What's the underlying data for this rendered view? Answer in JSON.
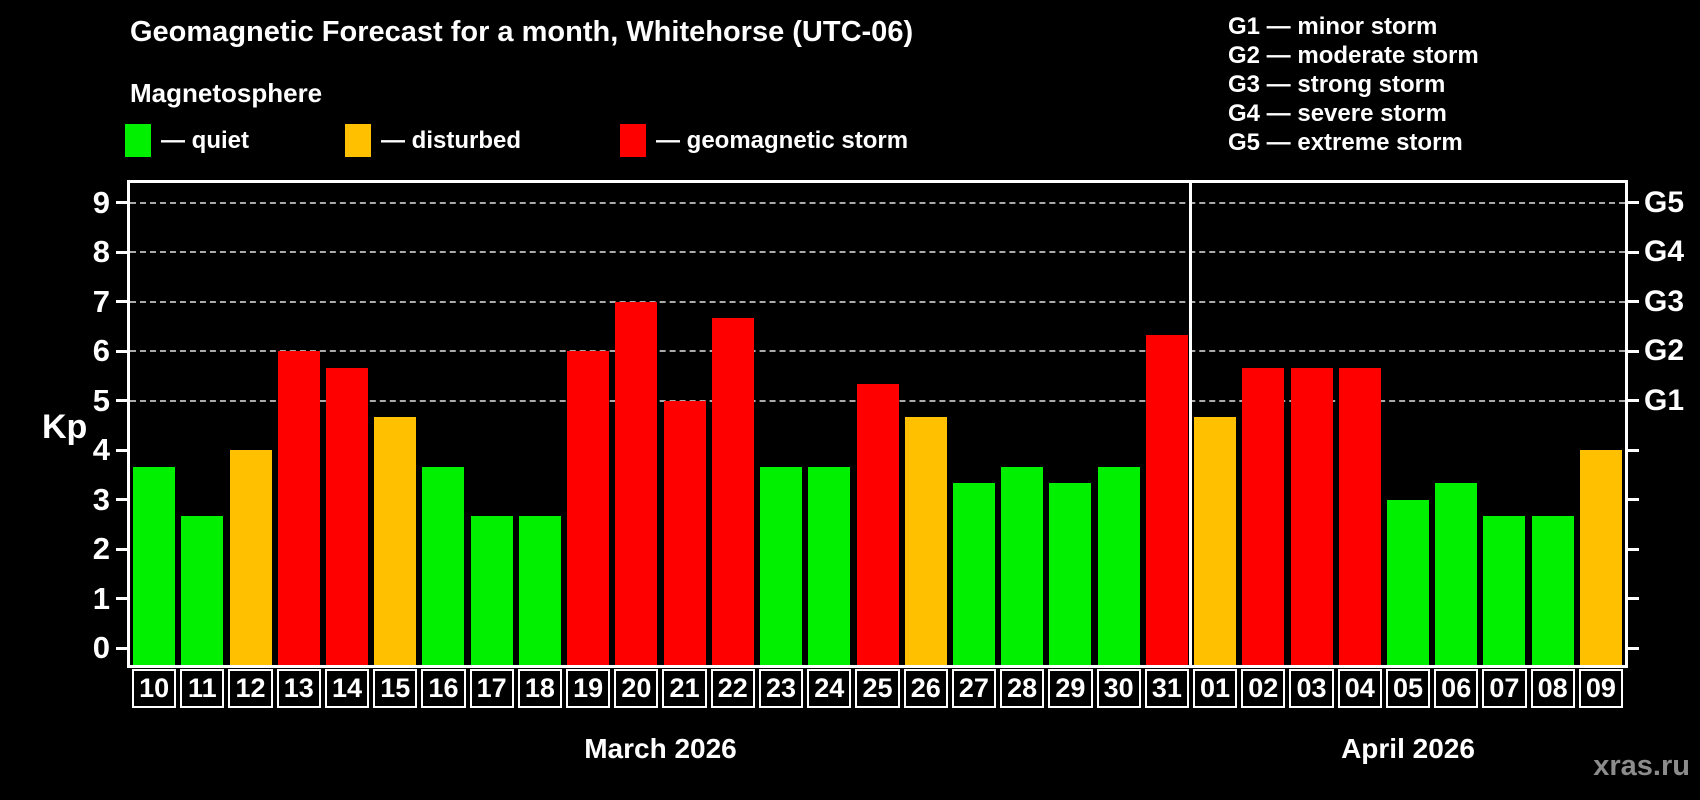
{
  "title": "Geomagnetic Forecast for a month, Whitehorse (UTC-06)",
  "subtitle": "Magnetosphere",
  "magnetosphere_legend": [
    {
      "status": "quiet",
      "label": "— quiet"
    },
    {
      "status": "disturbed",
      "label": "— disturbed"
    },
    {
      "status": "storm",
      "label": "— geomagnetic storm"
    }
  ],
  "g_scale_legend": [
    "G1 — minor storm",
    "G2 — moderate storm",
    "G3 — strong storm",
    "G4 — severe storm",
    "G5 — extreme storm"
  ],
  "watermark": "xras.ru",
  "chart_data": {
    "type": "bar",
    "title": "Geomagnetic Forecast for a month, Whitehorse (UTC-06)",
    "ylabel": "Kp",
    "xlabel": "",
    "ylim": [
      -0.4,
      9.4
    ],
    "y_ticks": [
      0,
      1,
      2,
      3,
      4,
      5,
      6,
      7,
      8,
      9
    ],
    "grid_levels": [
      5,
      6,
      7,
      8,
      9
    ],
    "grid_style": "dashed horizontal lines at Kp 5-9 only",
    "legend_position": "top-left",
    "right_axis_labels": [
      {
        "kp": 5,
        "label": "G1"
      },
      {
        "kp": 6,
        "label": "G2"
      },
      {
        "kp": 7,
        "label": "G3"
      },
      {
        "kp": 8,
        "label": "G4"
      },
      {
        "kp": 9,
        "label": "G5"
      }
    ],
    "months": [
      {
        "label": "March 2026",
        "num_days": 22
      },
      {
        "label": "April 2026",
        "num_days": 9
      }
    ],
    "categories": [
      "10",
      "11",
      "12",
      "13",
      "14",
      "15",
      "16",
      "17",
      "18",
      "19",
      "20",
      "21",
      "22",
      "23",
      "24",
      "25",
      "26",
      "27",
      "28",
      "29",
      "30",
      "31",
      "01",
      "02",
      "03",
      "04",
      "05",
      "06",
      "07",
      "08",
      "09"
    ],
    "values": [
      3.67,
      2.67,
      4.0,
      6.0,
      5.67,
      4.67,
      3.67,
      2.67,
      2.67,
      6.0,
      7.0,
      5.0,
      6.67,
      3.67,
      3.67,
      5.33,
      4.67,
      3.33,
      3.67,
      3.33,
      3.67,
      6.33,
      4.67,
      5.67,
      5.67,
      5.67,
      3.0,
      3.33,
      2.67,
      2.67,
      4.0
    ],
    "statuses": [
      "quiet",
      "quiet",
      "disturbed",
      "storm",
      "storm",
      "disturbed",
      "quiet",
      "quiet",
      "quiet",
      "storm",
      "storm",
      "storm",
      "storm",
      "quiet",
      "quiet",
      "storm",
      "disturbed",
      "quiet",
      "quiet",
      "quiet",
      "quiet",
      "storm",
      "disturbed",
      "storm",
      "storm",
      "storm",
      "quiet",
      "quiet",
      "quiet",
      "quiet",
      "disturbed"
    ],
    "colors": {
      "quiet": "#00f000",
      "disturbed": "#ffc000",
      "storm": "#ff0000",
      "axis": "#ffffff",
      "grid": "#aaaaaa",
      "background": "#000000",
      "watermark": "#8c8c8c"
    }
  }
}
